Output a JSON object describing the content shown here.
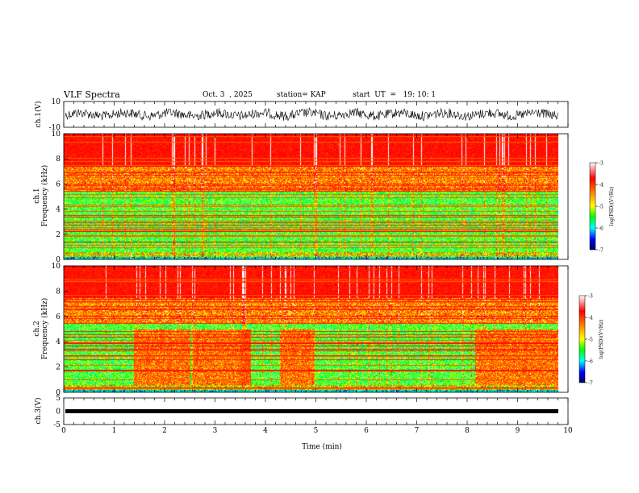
{
  "header": {
    "title": "VLF Spectra",
    "date": "Oct. 3  , 2025",
    "station": "station= KAP",
    "start": "start  UT  =   19: 10: 1"
  },
  "chart_data": [
    {
      "type": "line",
      "ylabel": "ch.1(V)",
      "ylim": [
        -10,
        10
      ],
      "yticks": [
        "10",
        "-10"
      ],
      "xlim": [
        0,
        10
      ],
      "description_visible": "noisy waveform trace"
    },
    {
      "type": "heatmap",
      "ylabel_top": "ch.1",
      "ylabel": "Frequency (kHz)",
      "ylim": [
        0,
        10
      ],
      "yticks": [
        "0",
        "2",
        "4",
        "6",
        "8",
        "10"
      ],
      "xlim": [
        0,
        10
      ],
      "colorbar": {
        "label": "log(PSD)(V²/Hz)",
        "range": [
          -7,
          -3
        ],
        "ticks": [
          "-3",
          "-4",
          "-5",
          "-6",
          "-7"
        ]
      }
    },
    {
      "type": "heatmap",
      "ylabel_top": "ch.2",
      "ylabel": "Frequency (kHz)",
      "ylim": [
        0,
        10
      ],
      "yticks": [
        "0",
        "2",
        "4",
        "6",
        "8",
        "10"
      ],
      "xlim": [
        0,
        10
      ],
      "colorbar": {
        "label": "log(PSD)(V²/Hz)",
        "range": [
          -7,
          -3
        ],
        "ticks": [
          "-3",
          "-4",
          "-5",
          "-6",
          "-7"
        ]
      }
    },
    {
      "type": "line",
      "ylabel": "ch.3(V)",
      "ylim": [
        -5,
        5
      ],
      "yticks": [
        "5",
        "0",
        "-5"
      ],
      "xlim": [
        0,
        10
      ],
      "xlabel": "Time (min)",
      "xticks": [
        "0",
        "1",
        "2",
        "3",
        "4",
        "5",
        "6",
        "7",
        "8",
        "9",
        "10"
      ]
    }
  ],
  "colors": {
    "c_max": "#ff0000",
    "c_hi": "#ff8000",
    "c_mid": "#ffff00",
    "c_lo": "#00ff00",
    "c_low2": "#00ffff",
    "c_min": "#0000ff",
    "c_floor": "#000080"
  }
}
